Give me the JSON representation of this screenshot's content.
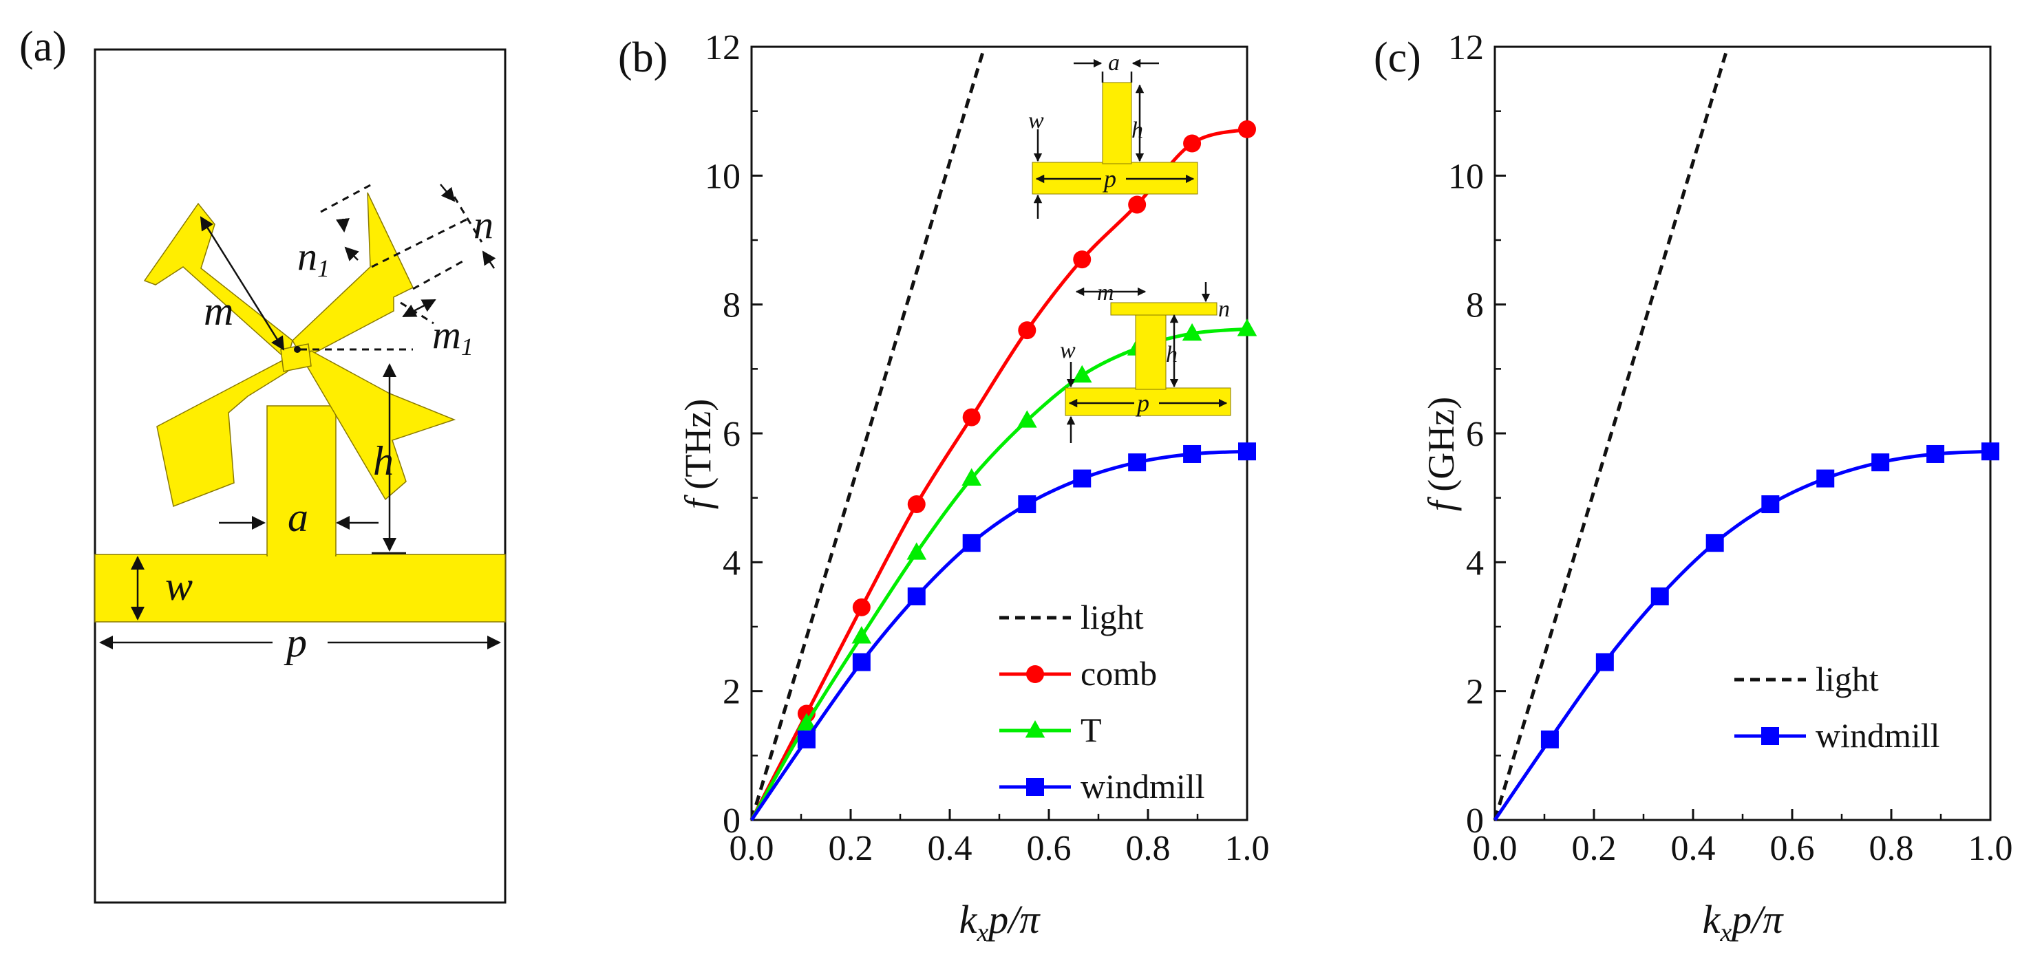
{
  "figure": {
    "panel_a": {
      "label": "(a)",
      "dims": {
        "m": "m",
        "m1": "m",
        "m1_sub": "1",
        "n": "n",
        "n1": "n",
        "n1_sub": "1",
        "h": "h",
        "a": "a",
        "w": "w",
        "p": "p"
      }
    },
    "panel_b": {
      "label": "(b)",
      "ylabel_f": "f",
      "ylabel_unit": " (THz)",
      "xlabel_k": "k",
      "xlabel_sub": "x",
      "xlabel_rest": "p/π",
      "inset_t": {
        "a": "a",
        "h": "h",
        "w": "w",
        "p": "p"
      },
      "inset_comb": {
        "m": "m",
        "n": "n",
        "h": "h",
        "w": "w",
        "p": "p"
      }
    },
    "panel_c": {
      "label": "(c)",
      "ylabel_f": "f",
      "ylabel_unit": " (GHz)",
      "xlabel_k": "k",
      "xlabel_sub": "x",
      "xlabel_rest": "p/π"
    },
    "colors": {
      "yellow": "#ffee00",
      "red": "#ff0000",
      "green": "#00ee00",
      "blue": "#0000ff"
    }
  },
  "chart_data": [
    {
      "type": "line",
      "panel": "b",
      "xlabel": "kxp/π",
      "ylabel": "f (THz)",
      "xlim": [
        0,
        1.0
      ],
      "ylim": [
        0,
        12
      ],
      "xticks": [
        "0.0",
        "0.2",
        "0.4",
        "0.6",
        "0.8",
        "1.0"
      ],
      "yticks": [
        "0",
        "2",
        "4",
        "6",
        "8",
        "10",
        "12"
      ],
      "xtick_values": [
        0,
        0.2,
        0.4,
        0.6,
        0.8,
        1.0
      ],
      "ytick_values": [
        0,
        2,
        4,
        6,
        8,
        10,
        12
      ],
      "legend_position": "bottom-right",
      "series": [
        {
          "name": "light",
          "style": "dash",
          "color": "#111111",
          "x": [
            0,
            0.47
          ],
          "y": [
            0,
            12
          ]
        },
        {
          "name": "comb",
          "marker": "circle",
          "color": "#ff0000",
          "x": [
            0,
            0.111,
            0.222,
            0.333,
            0.444,
            0.556,
            0.667,
            0.778,
            0.889,
            1.0
          ],
          "y": [
            0,
            1.65,
            3.3,
            4.9,
            6.25,
            7.6,
            8.7,
            9.55,
            10.5,
            10.72
          ]
        },
        {
          "name": "T",
          "marker": "triangle",
          "color": "#00ee00",
          "x": [
            0,
            0.111,
            0.222,
            0.333,
            0.444,
            0.556,
            0.667,
            0.778,
            0.889,
            1.0
          ],
          "y": [
            0,
            1.5,
            2.85,
            4.15,
            5.3,
            6.2,
            6.9,
            7.32,
            7.55,
            7.62
          ]
        },
        {
          "name": "windmill",
          "marker": "square",
          "color": "#0000ff",
          "x": [
            0,
            0.111,
            0.222,
            0.333,
            0.444,
            0.556,
            0.667,
            0.778,
            0.889,
            1.0
          ],
          "y": [
            0,
            1.25,
            2.45,
            3.47,
            4.3,
            4.9,
            5.3,
            5.55,
            5.68,
            5.72
          ]
        }
      ]
    },
    {
      "type": "line",
      "panel": "c",
      "xlabel": "kxp/π",
      "ylabel": "f (GHz)",
      "xlim": [
        0,
        1.0
      ],
      "ylim": [
        0,
        12
      ],
      "xticks": [
        "0.0",
        "0.2",
        "0.4",
        "0.6",
        "0.8",
        "1.0"
      ],
      "yticks": [
        "0",
        "2",
        "4",
        "6",
        "8",
        "10",
        "12"
      ],
      "xtick_values": [
        0,
        0.2,
        0.4,
        0.6,
        0.8,
        1.0
      ],
      "ytick_values": [
        0,
        2,
        4,
        6,
        8,
        10,
        12
      ],
      "legend_position": "bottom-right",
      "series": [
        {
          "name": "light",
          "style": "dash",
          "color": "#111111",
          "x": [
            0,
            0.47
          ],
          "y": [
            0,
            12
          ]
        },
        {
          "name": "windmill",
          "marker": "square",
          "color": "#0000ff",
          "x": [
            0,
            0.111,
            0.222,
            0.333,
            0.444,
            0.556,
            0.667,
            0.778,
            0.889,
            1.0
          ],
          "y": [
            0,
            1.25,
            2.45,
            3.47,
            4.3,
            4.9,
            5.3,
            5.55,
            5.68,
            5.72
          ]
        }
      ]
    }
  ]
}
